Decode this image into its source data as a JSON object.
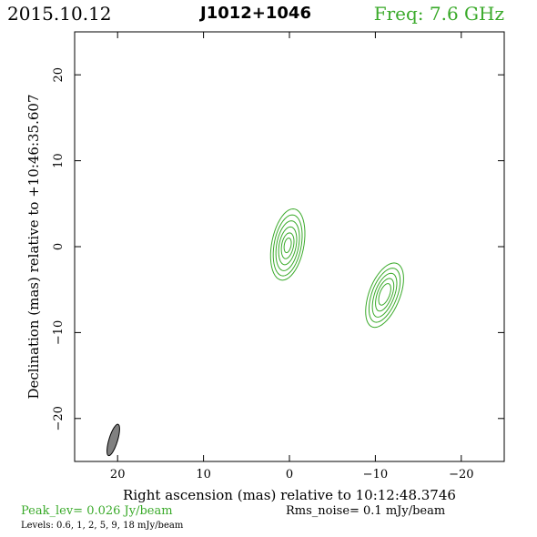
{
  "header": {
    "date": "2015.10.12",
    "source": "J1012+1046",
    "freq": "Freq:  7.6  GHz"
  },
  "footer": {
    "peak": "Peak_lev=  0.026 Jy/beam",
    "rms": "Rms_noise=   0.1  mJy/beam",
    "levels": "Levels: 0.6,    1,    2,    5,    9,   18 mJy/beam"
  },
  "colors": {
    "contour": "#3aaa2a",
    "beam_fill": "#808080",
    "frame": "#000000"
  },
  "chart_data": {
    "type": "contour",
    "xlabel": "Right ascension (mas) relative to 10:12:48.3746",
    "ylabel": "Declination (mas) relative to +10:46:35.607",
    "xlim": [
      25,
      -25
    ],
    "ylim": [
      -25,
      25
    ],
    "xticks": [
      20,
      10,
      0,
      -10,
      -20
    ],
    "yticks": [
      20,
      10,
      0,
      -10,
      -20
    ],
    "xtick_labels": [
      "20",
      "10",
      "0",
      "−10",
      "−20"
    ],
    "ytick_labels": [
      "20",
      "10",
      "0",
      "−10",
      "−20"
    ],
    "levels_mJy": [
      0.6,
      1,
      2,
      5,
      9,
      18
    ],
    "components": [
      {
        "x": 0.2,
        "y": 0.2,
        "levels": [
          [
            1.9,
            4.2,
            4.1,
            -0.15
          ],
          [
            1.6,
            3.5,
            3.6,
            -0.15
          ],
          [
            1.3,
            2.8,
            3.0,
            -0.15
          ],
          [
            1.0,
            2.1,
            2.3,
            -0.15
          ],
          [
            0.7,
            1.4,
            1.6,
            -0.15
          ],
          [
            0.4,
            0.8,
            0.9,
            -0.15
          ]
        ]
      },
      {
        "x": -11.1,
        "y": -5.5,
        "levels": [
          [
            1.9,
            3.6,
            3.9,
            -0.3
          ],
          [
            1.55,
            3.0,
            3.3,
            -0.3
          ],
          [
            1.2,
            2.4,
            2.7,
            -0.3
          ],
          [
            0.9,
            1.8,
            2.0,
            -0.3
          ],
          [
            0.6,
            1.2,
            1.3,
            -0.3
          ]
        ]
      }
    ],
    "beam": {
      "x": 20.5,
      "y": -22.5,
      "major_mas": 3.8,
      "minor_mas": 1.0,
      "pa_deg": 17
    }
  }
}
